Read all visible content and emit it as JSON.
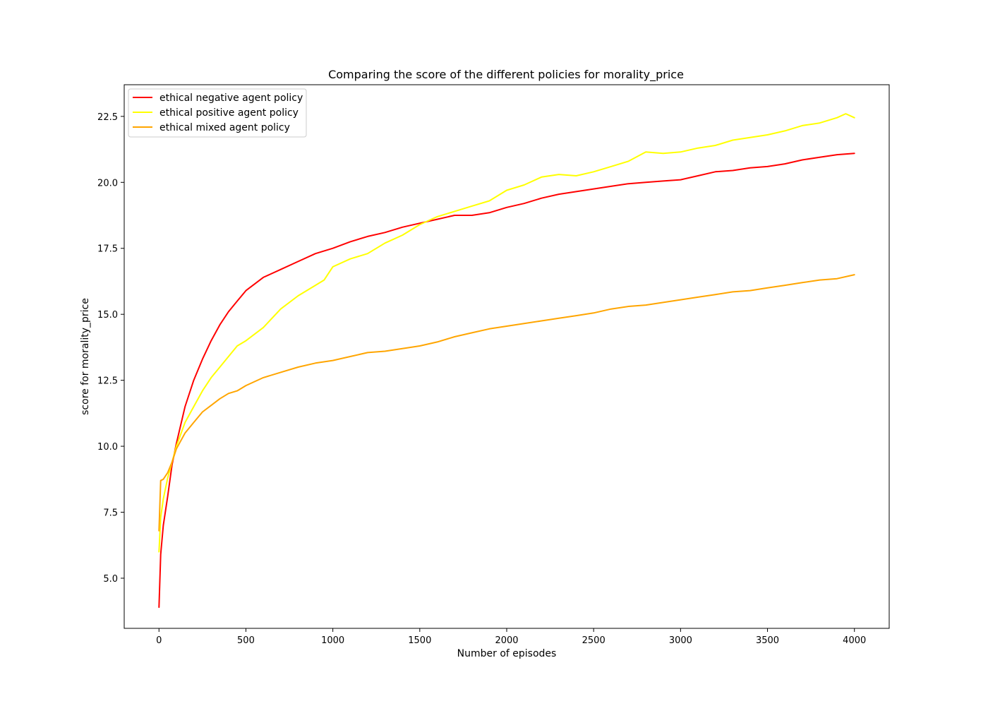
{
  "chart_data": {
    "type": "line",
    "title": "Comparing the score of the different policies for morality_price",
    "xlabel": "Number of episodes",
    "ylabel": "score for morality_price",
    "xlim": [
      -200,
      4200
    ],
    "ylim": [
      3.1,
      23.7
    ],
    "xticks": [
      0,
      500,
      1000,
      1500,
      2000,
      2500,
      3000,
      3500,
      4000
    ],
    "xtick_labels": [
      "0",
      "500",
      "1000",
      "1500",
      "2000",
      "2500",
      "3000",
      "3500",
      "4000"
    ],
    "yticks": [
      5.0,
      7.5,
      10.0,
      12.5,
      15.0,
      17.5,
      20.0,
      22.5
    ],
    "ytick_labels": [
      "5.0",
      "7.5",
      "10.0",
      "12.5",
      "15.0",
      "17.5",
      "20.0",
      "22.5"
    ],
    "grid": false,
    "legend_position": "top-left",
    "series": [
      {
        "name": "ethical negative agent policy",
        "color": "#ff0000",
        "x": [
          0,
          10,
          25,
          50,
          75,
          100,
          150,
          200,
          250,
          300,
          350,
          400,
          450,
          500,
          600,
          700,
          800,
          900,
          1000,
          1100,
          1200,
          1300,
          1400,
          1500,
          1600,
          1700,
          1800,
          1900,
          2000,
          2100,
          2200,
          2300,
          2400,
          2500,
          2600,
          2700,
          2800,
          2900,
          3000,
          3100,
          3200,
          3300,
          3400,
          3500,
          3600,
          3700,
          3800,
          3900,
          4000
        ],
        "y": [
          3.9,
          5.9,
          7.0,
          8.1,
          9.3,
          10.1,
          11.5,
          12.5,
          13.3,
          14.0,
          14.6,
          15.1,
          15.5,
          15.9,
          16.4,
          16.7,
          17.0,
          17.3,
          17.5,
          17.75,
          17.95,
          18.1,
          18.3,
          18.45,
          18.6,
          18.75,
          18.75,
          18.85,
          19.05,
          19.2,
          19.4,
          19.55,
          19.65,
          19.75,
          19.85,
          19.95,
          20.0,
          20.05,
          20.1,
          20.25,
          20.4,
          20.45,
          20.55,
          20.6,
          20.7,
          20.85,
          20.95,
          21.05,
          21.1
        ]
      },
      {
        "name": "ethical positive agent policy",
        "color": "#ffff00",
        "x": [
          0,
          10,
          25,
          50,
          75,
          100,
          150,
          200,
          250,
          300,
          350,
          400,
          450,
          500,
          600,
          700,
          800,
          900,
          950,
          1000,
          1100,
          1200,
          1300,
          1400,
          1500,
          1600,
          1700,
          1800,
          1900,
          2000,
          2100,
          2200,
          2300,
          2400,
          2500,
          2600,
          2700,
          2800,
          2900,
          3000,
          3100,
          3200,
          3300,
          3400,
          3500,
          3600,
          3700,
          3800,
          3900,
          3950,
          4000
        ],
        "y": [
          6.0,
          7.3,
          8.0,
          8.8,
          9.4,
          10.0,
          10.9,
          11.5,
          12.1,
          12.6,
          13.0,
          13.4,
          13.8,
          14.0,
          14.5,
          15.2,
          15.7,
          16.1,
          16.3,
          16.8,
          17.1,
          17.3,
          17.7,
          18.0,
          18.4,
          18.7,
          18.9,
          19.1,
          19.3,
          19.7,
          19.9,
          20.2,
          20.3,
          20.25,
          20.4,
          20.6,
          20.8,
          21.15,
          21.1,
          21.15,
          21.3,
          21.4,
          21.6,
          21.7,
          21.8,
          21.95,
          22.15,
          22.25,
          22.45,
          22.6,
          22.45
        ]
      },
      {
        "name": "ethical mixed agent policy",
        "color": "#ffa500",
        "x": [
          0,
          10,
          25,
          50,
          75,
          100,
          150,
          200,
          250,
          300,
          350,
          400,
          450,
          500,
          600,
          700,
          800,
          900,
          1000,
          1100,
          1200,
          1300,
          1400,
          1500,
          1600,
          1700,
          1800,
          1900,
          2000,
          2100,
          2200,
          2300,
          2400,
          2500,
          2600,
          2700,
          2800,
          2900,
          3000,
          3100,
          3200,
          3300,
          3400,
          3500,
          3600,
          3700,
          3800,
          3900,
          4000
        ],
        "y": [
          6.8,
          8.7,
          8.75,
          9.0,
          9.4,
          9.9,
          10.5,
          10.9,
          11.3,
          11.55,
          11.8,
          12.0,
          12.1,
          12.3,
          12.6,
          12.8,
          13.0,
          13.15,
          13.25,
          13.4,
          13.55,
          13.6,
          13.7,
          13.8,
          13.95,
          14.15,
          14.3,
          14.45,
          14.55,
          14.65,
          14.75,
          14.85,
          14.95,
          15.05,
          15.2,
          15.3,
          15.35,
          15.45,
          15.55,
          15.65,
          15.75,
          15.85,
          15.9,
          16.0,
          16.1,
          16.2,
          16.3,
          16.35,
          16.5
        ]
      }
    ]
  }
}
